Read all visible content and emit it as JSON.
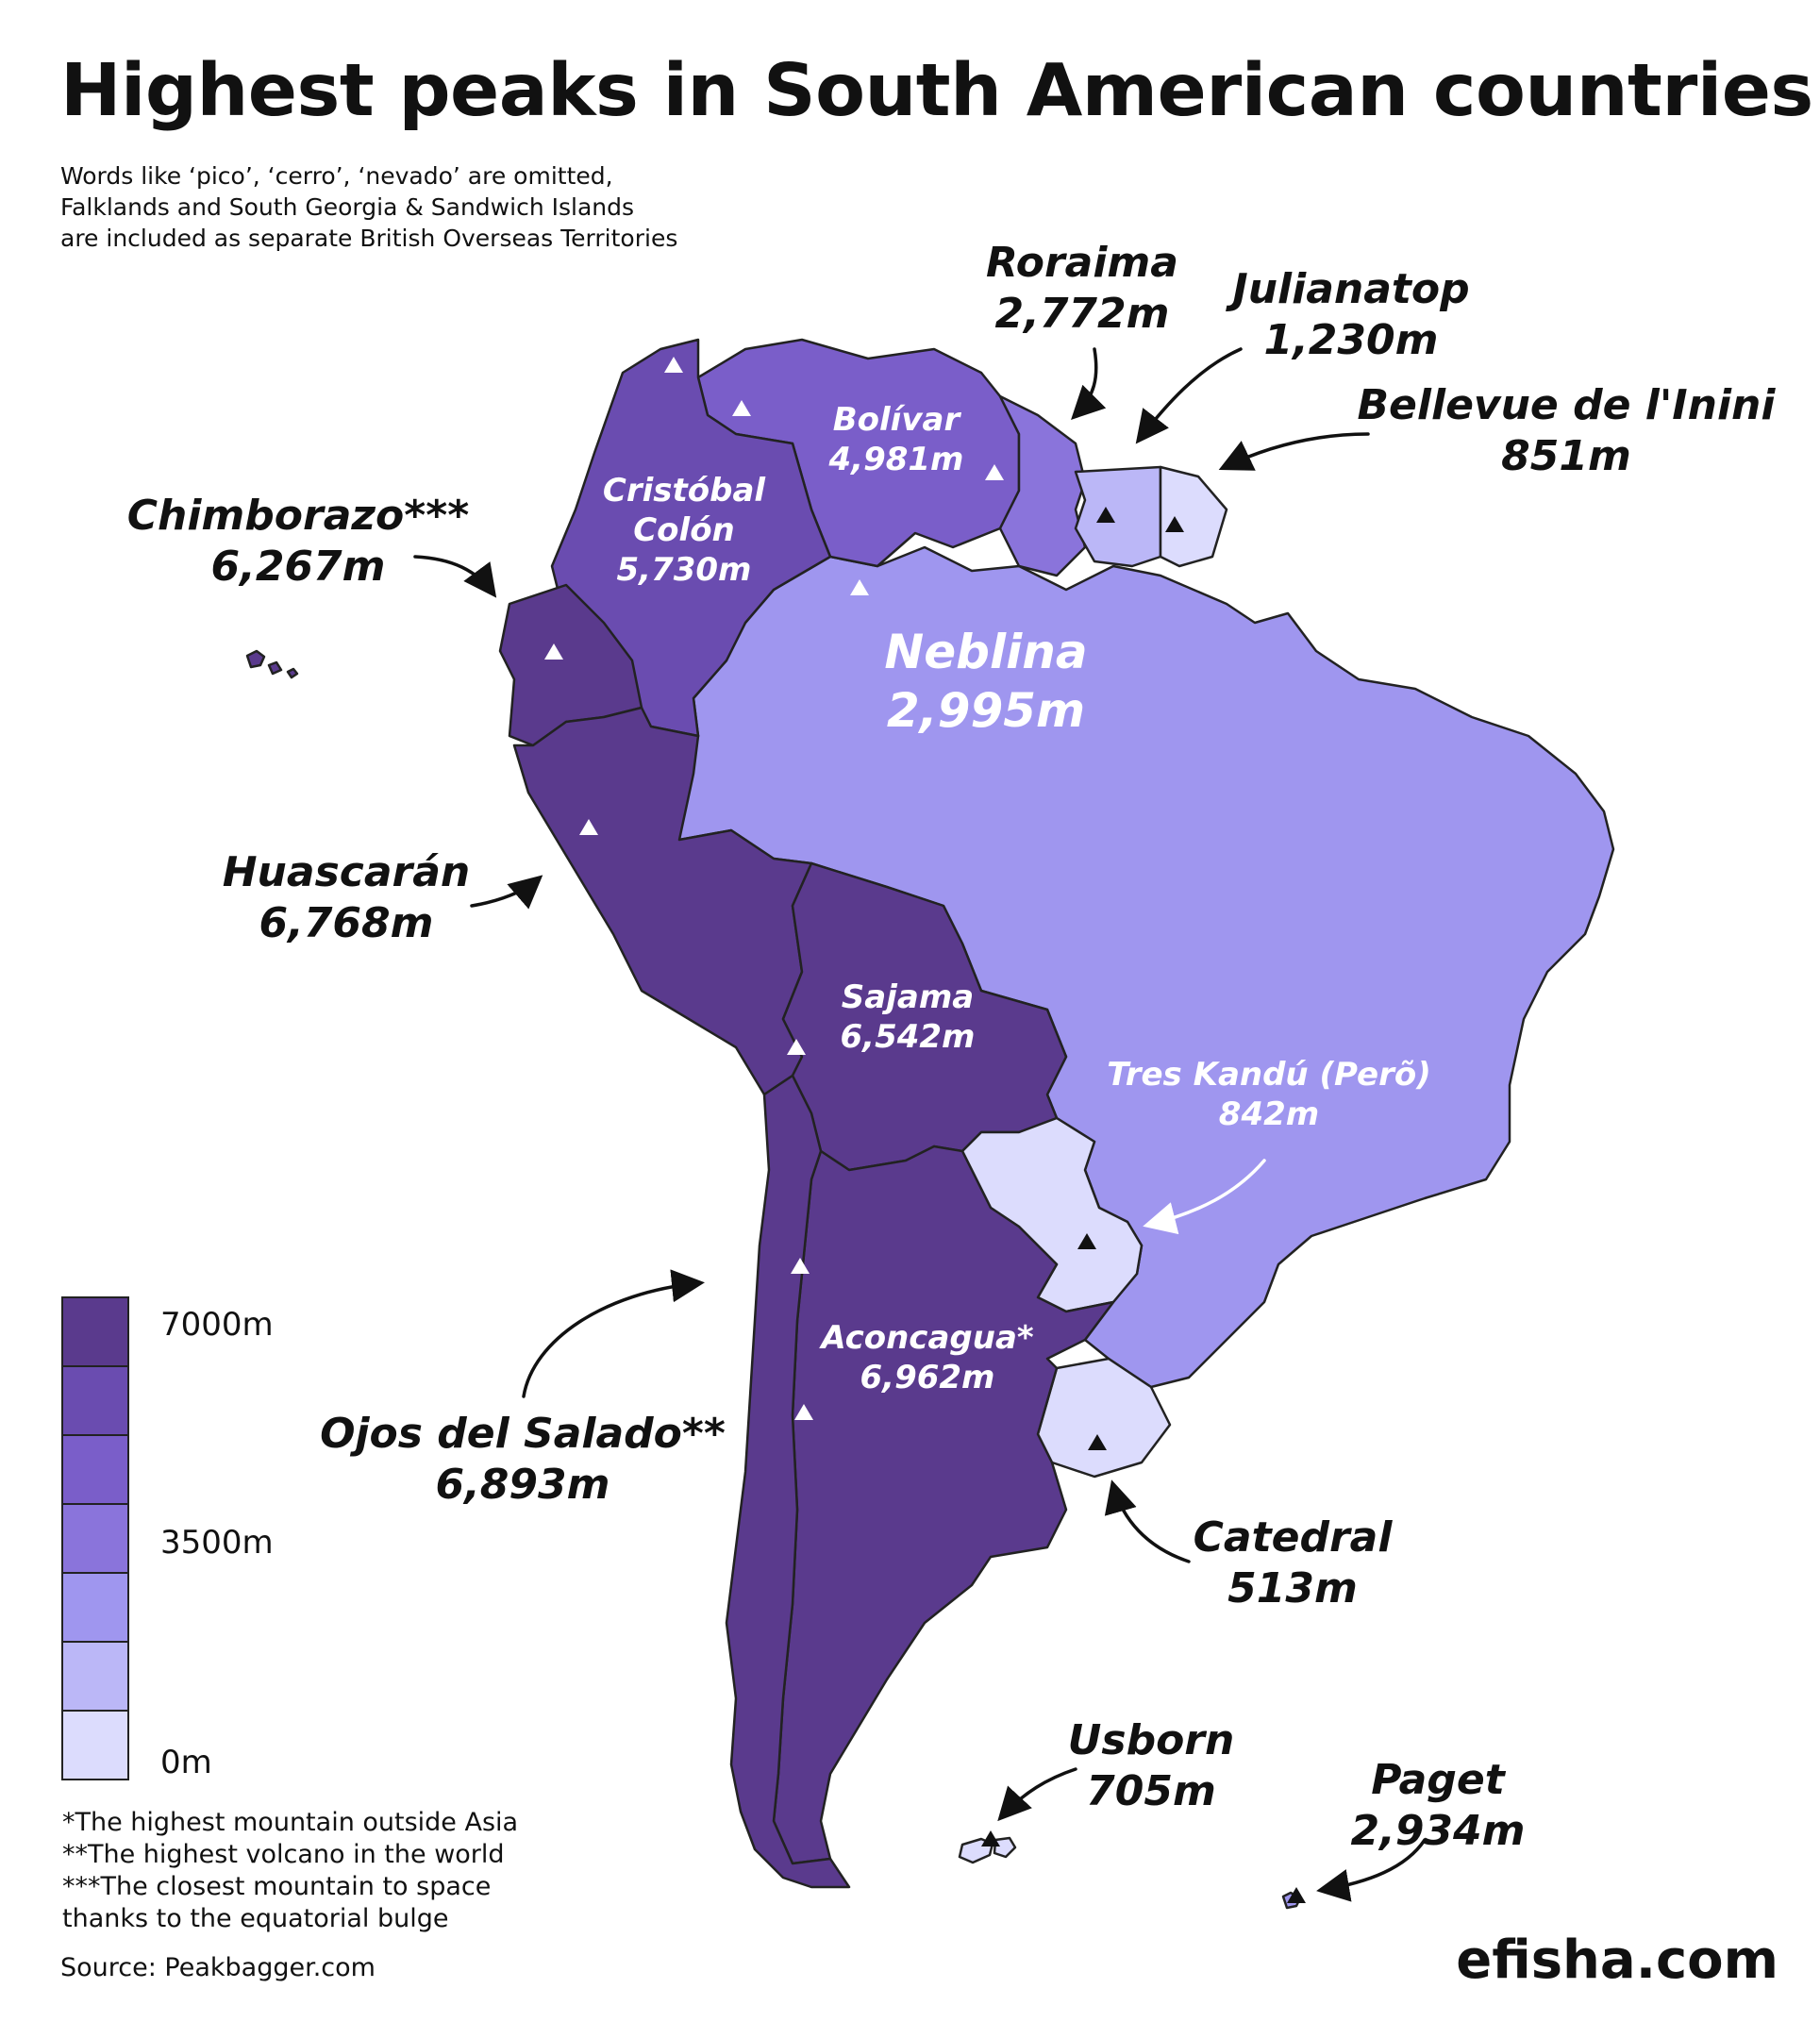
{
  "title": "Highest peaks in South American countries",
  "subtitle": [
    "Words like ‘pico’, ‘cerro’, ‘nevado’ are omitted,",
    "Falklands and South Georgia & Sandwich Islands",
    "are included as separate British Overseas Territories"
  ],
  "colors": {
    "band_0": "#dcdcfd",
    "band_1": "#bbb7f7",
    "band_2": "#9f96ef",
    "band_3": "#8a74db",
    "band_4": "#7a5ec9",
    "band_5": "#6a4cb0",
    "band_6": "#5a3a8d",
    "outline": "#222222"
  },
  "legend": {
    "scale_labels": [
      "7000m",
      "3500m",
      "0m"
    ],
    "bands": 7
  },
  "peaks": [
    {
      "key": "colombia",
      "country": "Colombia",
      "name_lines": [
        "Cristóbal",
        "Colón"
      ],
      "height": "5,730m",
      "value_m": 5730
    },
    {
      "key": "venezuela",
      "country": "Venezuela",
      "name_lines": [
        "Bolívar"
      ],
      "height": "4,981m",
      "value_m": 4981
    },
    {
      "key": "guyana",
      "country": "Guyana",
      "name_lines": [
        "Roraima"
      ],
      "height": "2,772m",
      "value_m": 2772
    },
    {
      "key": "suriname",
      "country": "Suriname",
      "name_lines": [
        "Julianatop"
      ],
      "height": "1,230m",
      "value_m": 1230
    },
    {
      "key": "french_guiana",
      "country": "French Guiana",
      "name_lines": [
        "Bellevue de l'Inini"
      ],
      "height": "851m",
      "value_m": 851
    },
    {
      "key": "ecuador",
      "country": "Ecuador",
      "name_lines": [
        "Chimborazo***"
      ],
      "height": "6,267m",
      "value_m": 6267
    },
    {
      "key": "brazil",
      "country": "Brazil",
      "name_lines": [
        "Neblina"
      ],
      "height": "2,995m",
      "value_m": 2995
    },
    {
      "key": "peru",
      "country": "Peru",
      "name_lines": [
        "Huascarán"
      ],
      "height": "6,768m",
      "value_m": 6768
    },
    {
      "key": "bolivia",
      "country": "Bolivia",
      "name_lines": [
        "Sajama"
      ],
      "height": "6,542m",
      "value_m": 6542
    },
    {
      "key": "paraguay",
      "country": "Paraguay",
      "name_lines": [
        "Tres Kandú (Perõ)"
      ],
      "height": "842m",
      "value_m": 842
    },
    {
      "key": "chile",
      "country": "Chile",
      "name_lines": [
        "Ojos del Salado**"
      ],
      "height": "6,893m",
      "value_m": 6893
    },
    {
      "key": "argentina",
      "country": "Argentina",
      "name_lines": [
        "Aconcagua*"
      ],
      "height": "6,962m",
      "value_m": 6962
    },
    {
      "key": "uruguay",
      "country": "Uruguay",
      "name_lines": [
        "Catedral"
      ],
      "height": "513m",
      "value_m": 513
    },
    {
      "key": "falklands",
      "country": "Falkland Islands",
      "name_lines": [
        "Usborn"
      ],
      "height": "705m",
      "value_m": 705
    },
    {
      "key": "south_georgia",
      "country": "South Georgia & Sandwich Islands",
      "name_lines": [
        "Paget"
      ],
      "height": "2,934m",
      "value_m": 2934
    }
  ],
  "footnotes": [
    "*The highest mountain outside Asia",
    "**The highest volcano in the world",
    "***The closest mountain to space",
    "thanks to the equatorial bulge"
  ],
  "source": "Source: Peakbagger.com",
  "brand": "efisha.com"
}
